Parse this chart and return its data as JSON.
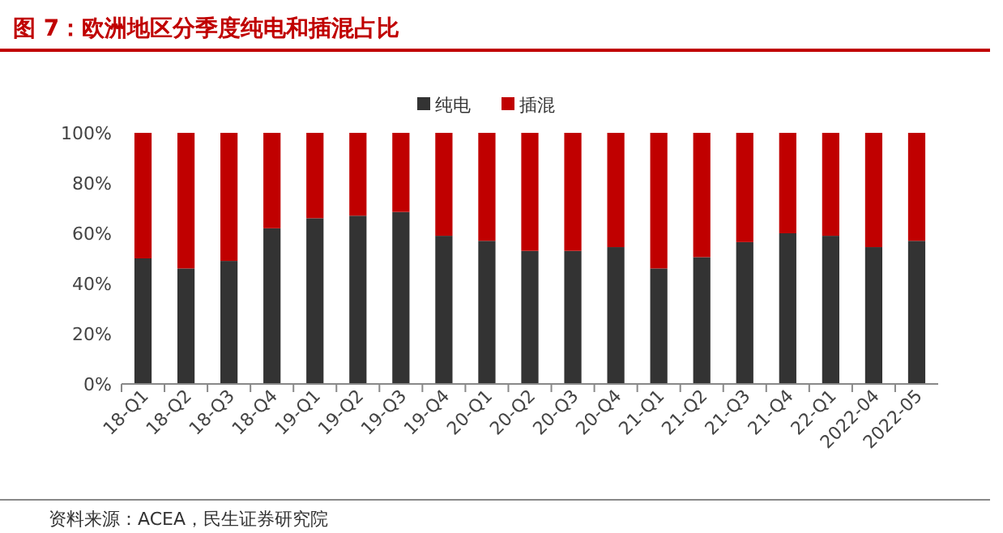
{
  "chart_data": {
    "type": "bar",
    "title": "图 7：欧洲地区分季度纯电和插混占比",
    "categories": [
      "18-Q1",
      "18-Q2",
      "18-Q3",
      "18-Q4",
      "19-Q1",
      "19-Q2",
      "19-Q3",
      "19-Q4",
      "20-Q1",
      "20-Q2",
      "20-Q3",
      "20-Q4",
      "21-Q1",
      "21-Q2",
      "21-Q3",
      "21-Q4",
      "22-Q1",
      "2022-04",
      "2022-05"
    ],
    "series": [
      {
        "name": "纯电",
        "color": "#333333",
        "values": [
          50,
          46,
          49,
          62,
          66,
          67,
          68.5,
          59,
          57,
          53,
          53,
          54.5,
          46,
          50.5,
          56.5,
          60,
          59,
          54.5,
          57
        ]
      },
      {
        "name": "插混",
        "color": "#c00000",
        "values": [
          50,
          54,
          51,
          38,
          34,
          33,
          31.5,
          41,
          43,
          47,
          47,
          45.5,
          54,
          49.5,
          43.5,
          40,
          41,
          45.5,
          43
        ]
      }
    ],
    "stacked": true,
    "ylim": [
      0,
      100
    ],
    "yticks": [
      {
        "value": 0,
        "label": "0%"
      },
      {
        "value": 20,
        "label": "20%"
      },
      {
        "value": 40,
        "label": "40%"
      },
      {
        "value": 60,
        "label": "60%"
      },
      {
        "value": 80,
        "label": "80%"
      },
      {
        "value": 100,
        "label": "100%"
      }
    ],
    "grid": false,
    "legend": "top",
    "annotations": [
      "资料来源：ACEA，民生证券研究院"
    ]
  }
}
